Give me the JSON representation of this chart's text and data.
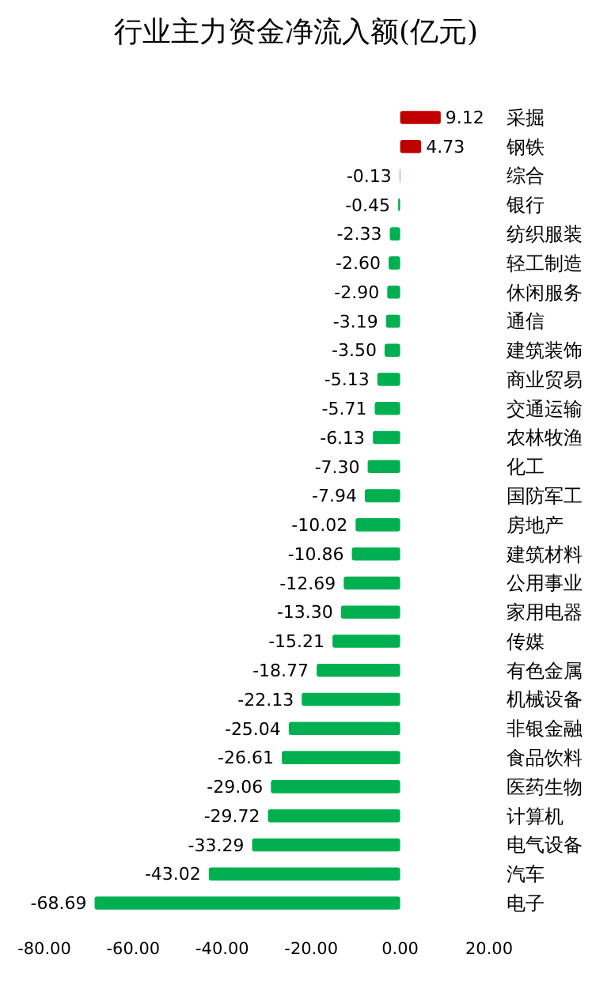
{
  "chart_data": {
    "type": "bar",
    "orientation": "horizontal",
    "title": "行业主力资金净流入额(亿元)",
    "categories": [
      "采掘",
      "钢铁",
      "综合",
      "银行",
      "纺织服装",
      "轻工制造",
      "休闲服务",
      "通信",
      "建筑装饰",
      "商业贸易",
      "交通运输",
      "农林牧渔",
      "化工",
      "国防军工",
      "房地产",
      "建筑材料",
      "公用事业",
      "家用电器",
      "传媒",
      "有色金属",
      "机械设备",
      "非银金融",
      "食品饮料",
      "医药生物",
      "计算机",
      "电气设备",
      "汽车",
      "电子"
    ],
    "values": [
      9.12,
      4.73,
      -0.13,
      -0.45,
      -2.33,
      -2.6,
      -2.9,
      -3.19,
      -3.5,
      -5.13,
      -5.71,
      -6.13,
      -7.3,
      -7.94,
      -10.02,
      -10.86,
      -12.69,
      -13.3,
      -15.21,
      -18.77,
      -22.13,
      -25.04,
      -26.61,
      -29.06,
      -29.72,
      -33.29,
      -43.02,
      -68.69
    ],
    "value_labels": [
      "9.12",
      "4.73",
      "-0.13",
      "-0.45",
      "-2.33",
      "-2.60",
      "-2.90",
      "-3.19",
      "-3.50",
      "-5.13",
      "-5.71",
      "-6.13",
      "-7.30",
      "-7.94",
      "-10.02",
      "-10.86",
      "-12.69",
      "-13.30",
      "-15.21",
      "-18.77",
      "-22.13",
      "-25.04",
      "-26.61",
      "-29.06",
      "-29.72",
      "-33.29",
      "-43.02",
      "-68.69"
    ],
    "colors": [
      "#c00000",
      "#c00000",
      "#00b050",
      "#00b050",
      "#00b050",
      "#00b050",
      "#00b050",
      "#00b050",
      "#00b050",
      "#00b050",
      "#00b050",
      "#00b050",
      "#00b050",
      "#00b050",
      "#00b050",
      "#00b050",
      "#00b050",
      "#00b050",
      "#00b050",
      "#00b050",
      "#00b050",
      "#00b050",
      "#00b050",
      "#00b050",
      "#00b050",
      "#00b050",
      "#00b050",
      "#00b050"
    ],
    "xlim": [
      -80,
      20
    ],
    "xticks": [
      {
        "value": -80,
        "label": "-80.00"
      },
      {
        "value": -60,
        "label": "-60.00"
      },
      {
        "value": -40,
        "label": "-40.00"
      },
      {
        "value": -20,
        "label": "-20.00"
      },
      {
        "value": 0,
        "label": "0.00"
      },
      {
        "value": 20,
        "label": "20.00"
      }
    ],
    "grid": false
  }
}
